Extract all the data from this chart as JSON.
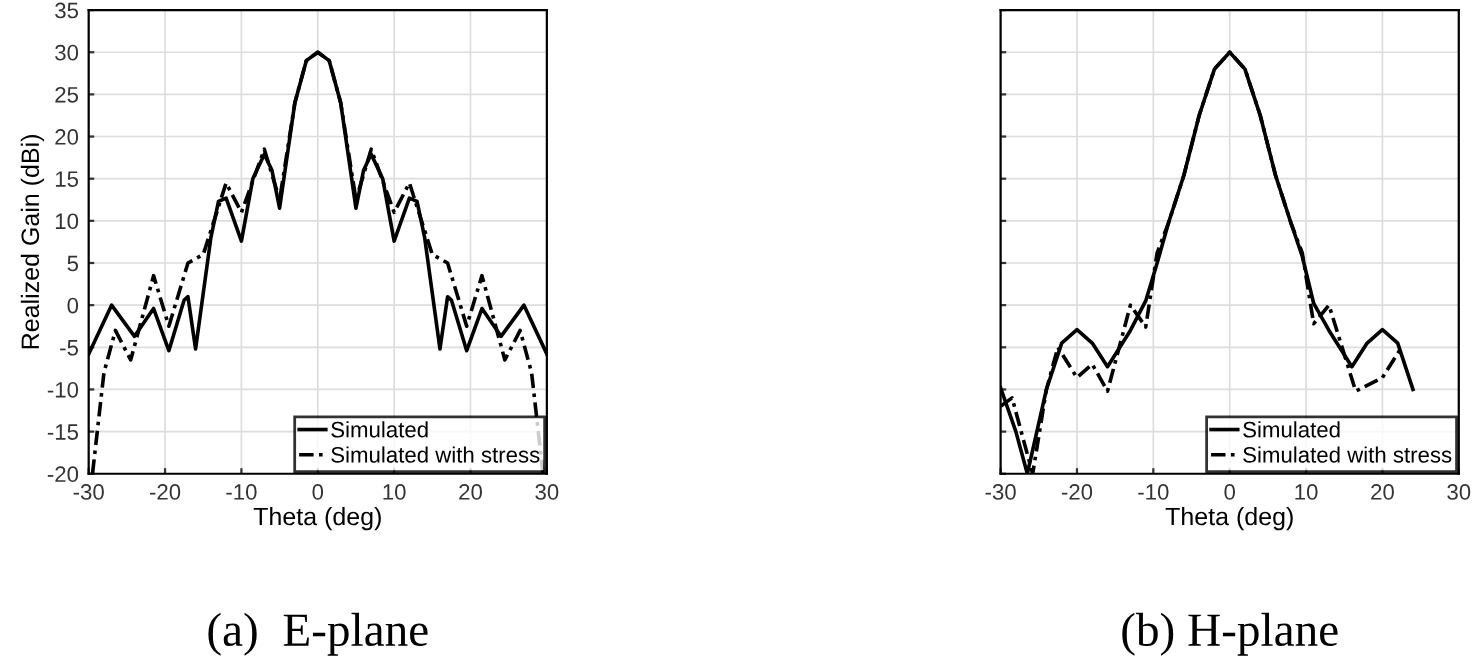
{
  "chart_data": [
    {
      "type": "line",
      "title": "(a)  E-plane",
      "xlabel": "Theta (deg)",
      "ylabel": "Realized Gain (dBi)",
      "xlim": [
        -30,
        30
      ],
      "xticks": [
        -30,
        -20,
        -10,
        0,
        10,
        20,
        30
      ],
      "ylim": [
        -20,
        35
      ],
      "yticks": [
        -20,
        -15,
        -10,
        -5,
        0,
        5,
        10,
        15,
        20,
        25,
        30,
        35
      ],
      "grid": true,
      "legend": "bottom right",
      "series": [
        {
          "name": "Simulated",
          "color": "#000000",
          "line_style": "solid",
          "x": [
            -30,
            -27,
            -24,
            -21.5,
            -19.5,
            -17.5,
            -17,
            -16,
            -14,
            -13,
            -12,
            -10,
            -8.5,
            -7,
            -6,
            -5,
            -3,
            -1.5,
            0,
            1.5,
            3,
            5,
            6,
            7,
            8.5,
            10,
            12,
            13,
            14,
            16,
            17,
            17.5,
            19.5,
            21.5,
            24,
            27,
            30
          ],
          "values": [
            -5.8,
            0,
            -3.7,
            -0.4,
            -5.4,
            0.6,
            1,
            -5.2,
            8,
            12.3,
            12.7,
            7.6,
            15,
            17.9,
            16,
            11.5,
            24,
            29,
            30,
            29,
            24,
            11.5,
            16,
            17.9,
            15,
            7.6,
            12.7,
            12.3,
            8,
            -5.2,
            1,
            0.6,
            -5.4,
            -0.4,
            -3.7,
            0,
            -5.8
          ]
        },
        {
          "name": "Simulated with stress",
          "color": "#000000",
          "line_style": "dashed",
          "x": [
            -29.5,
            -28,
            -26.5,
            -24.5,
            -21.5,
            -19.5,
            -17,
            -15,
            -12,
            -10,
            -7,
            -5,
            -3,
            -1.5,
            0,
            1.5,
            3,
            5,
            7,
            10,
            12,
            15,
            17,
            19.5,
            21.5,
            24.5,
            26.5,
            28,
            29.5
          ],
          "values": [
            -20,
            -8,
            -3,
            -6.5,
            3.5,
            -2.5,
            5,
            6,
            14.5,
            11,
            18.5,
            12.5,
            24,
            29,
            30,
            29,
            24,
            12.5,
            18.5,
            11,
            14.5,
            6,
            5,
            -2.5,
            3.5,
            -6.5,
            -3,
            -8,
            -20
          ]
        }
      ]
    },
    {
      "type": "line",
      "title": "(b) H-plane",
      "xlabel": "Theta (deg)",
      "xlim": [
        -30,
        30
      ],
      "xticks": [
        -30,
        -20,
        -10,
        0,
        10,
        20,
        30
      ],
      "ylim": [
        -20,
        35
      ],
      "yticks": [
        {
          "value": -20,
          "label": null
        },
        {
          "value": -15,
          "label": null
        },
        {
          "value": -10,
          "label": null
        },
        {
          "value": -5,
          "label": null
        },
        {
          "value": 0,
          "label": null
        },
        {
          "value": 5,
          "label": null
        },
        {
          "value": 10,
          "label": null
        },
        {
          "value": 15,
          "label": null
        },
        {
          "value": 20,
          "label": null
        },
        {
          "value": 25,
          "label": null
        },
        {
          "value": 30,
          "label": null
        },
        {
          "value": 35,
          "label": null
        }
      ],
      "tick_labels": "x",
      "grid": true,
      "legend": "bottom right",
      "series": [
        {
          "name": "Simulated",
          "color": "#000000",
          "line_style": "solid",
          "x": [
            -30,
            -28,
            -26.5,
            -24,
            -22,
            -20,
            -18,
            -16,
            -13,
            -11,
            -9.5,
            -8,
            -6,
            -4,
            -2,
            0,
            2,
            4,
            6,
            8,
            9.5,
            11,
            13,
            16,
            18,
            20,
            22,
            24
          ],
          "values": [
            -9.8,
            -15,
            -20,
            -10,
            -4.5,
            -2.9,
            -4.5,
            -7.3,
            -3,
            0.5,
            5,
            9.8,
            15.4,
            22.5,
            28,
            30,
            28,
            22.5,
            15.4,
            9.8,
            5.8,
            0.2,
            -3,
            -7.3,
            -4.5,
            -2.9,
            -4.5,
            -10
          ]
        },
        {
          "name": "Simulated with stress",
          "color": "#000000",
          "line_style": "dashed",
          "x": [
            -30,
            -28.5,
            -25.8,
            -24,
            -22.5,
            -20,
            -18,
            -16,
            -13,
            -11,
            -9.5,
            -8,
            -6,
            -4,
            -2,
            0,
            2,
            4,
            6,
            8,
            9.5,
            11,
            13,
            16.5,
            20,
            22.5
          ],
          "values": [
            -12,
            -11,
            -20,
            -10,
            -5,
            -8.6,
            -7,
            -10.2,
            0,
            -2.6,
            6.2,
            9.8,
            15.4,
            22.5,
            28,
            30,
            28,
            22.5,
            15.4,
            9.8,
            6.2,
            -2.2,
            0,
            -10.2,
            -8.6,
            -5
          ]
        }
      ]
    }
  ]
}
